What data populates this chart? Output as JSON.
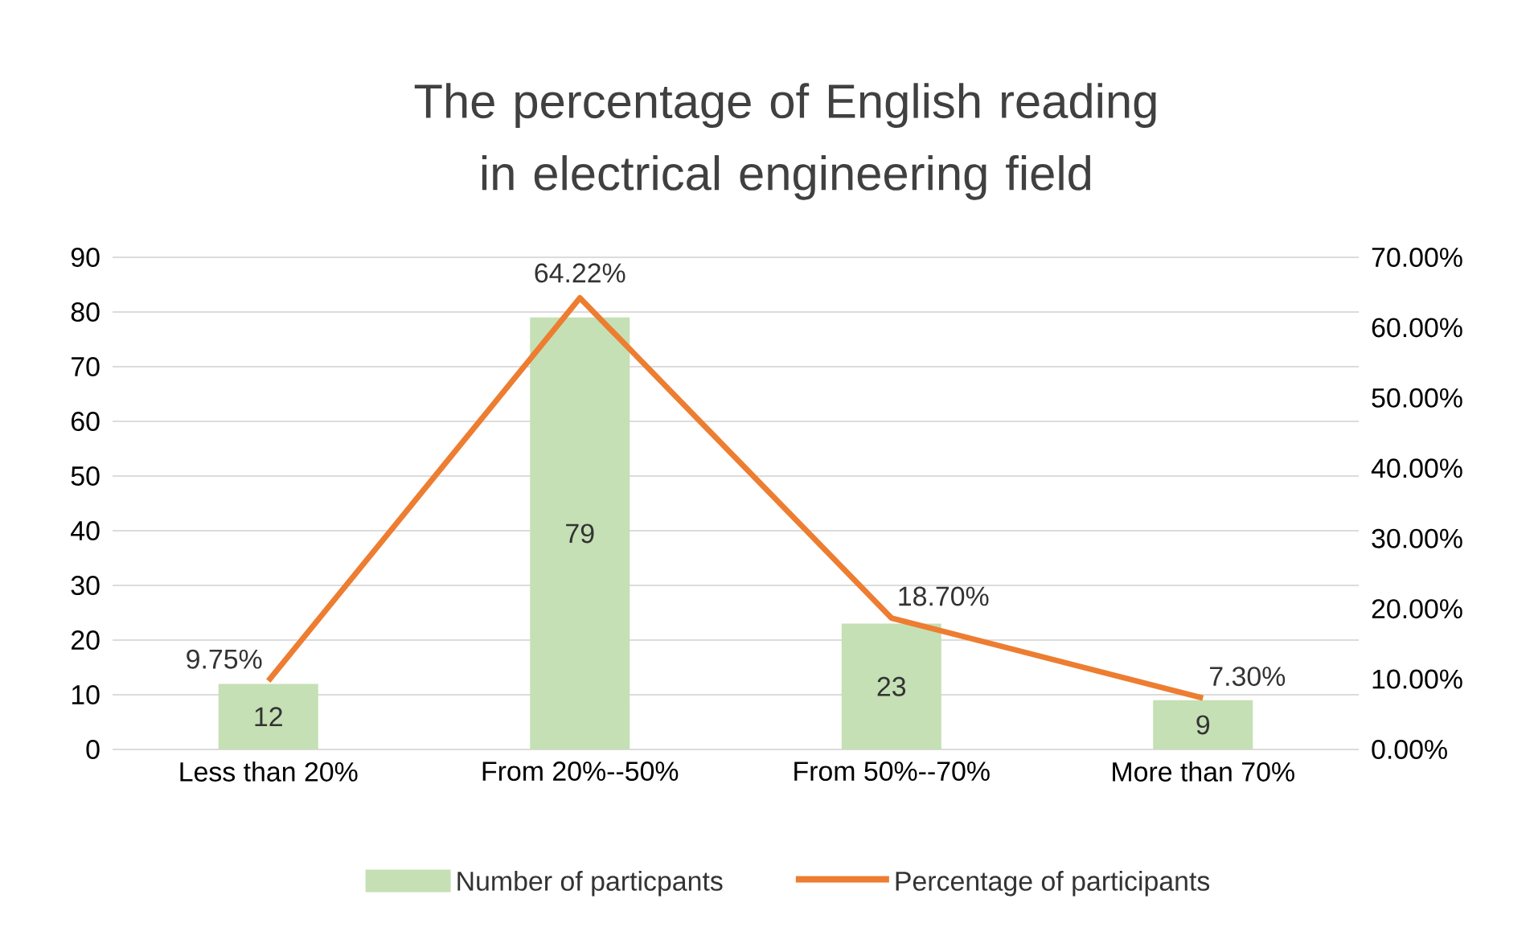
{
  "chart_data": {
    "type": "bar",
    "title": "The percentage of English reading in electrical engineering field",
    "categories": [
      "Less than 20%",
      "From 20%--50%",
      "From 50%--70%",
      "More than 70%"
    ],
    "series": [
      {
        "name": "Number of particpants",
        "color": "#c5e0b4",
        "values": [
          12,
          79,
          23,
          9
        ],
        "value_labels": [
          "12",
          "79",
          "23",
          "9"
        ]
      },
      {
        "name": "Percentage of participants",
        "type": "line",
        "axis": "y2",
        "color": "#ed7d31",
        "values": [
          9.75,
          64.22,
          18.7,
          7.3
        ],
        "value_labels": [
          "9.75%",
          "64.22%",
          "18.70%",
          "7.30%"
        ]
      }
    ],
    "ylim": [
      0,
      90
    ],
    "yticks": [
      0,
      10,
      20,
      30,
      40,
      50,
      60,
      70,
      80,
      90
    ],
    "y2lim": [
      0,
      70
    ],
    "y2ticks": [
      {
        "value": 0,
        "label": "0.00%"
      },
      {
        "value": 10,
        "label": "10.00%"
      },
      {
        "value": 20,
        "label": "20.00%"
      },
      {
        "value": 30,
        "label": "30.00%"
      },
      {
        "value": 40,
        "label": "40.00%"
      },
      {
        "value": 50,
        "label": "50.00%"
      },
      {
        "value": 60,
        "label": "60.00%"
      },
      {
        "value": 70,
        "label": "70.00%"
      }
    ],
    "grid": "y",
    "legend": "bottom"
  }
}
